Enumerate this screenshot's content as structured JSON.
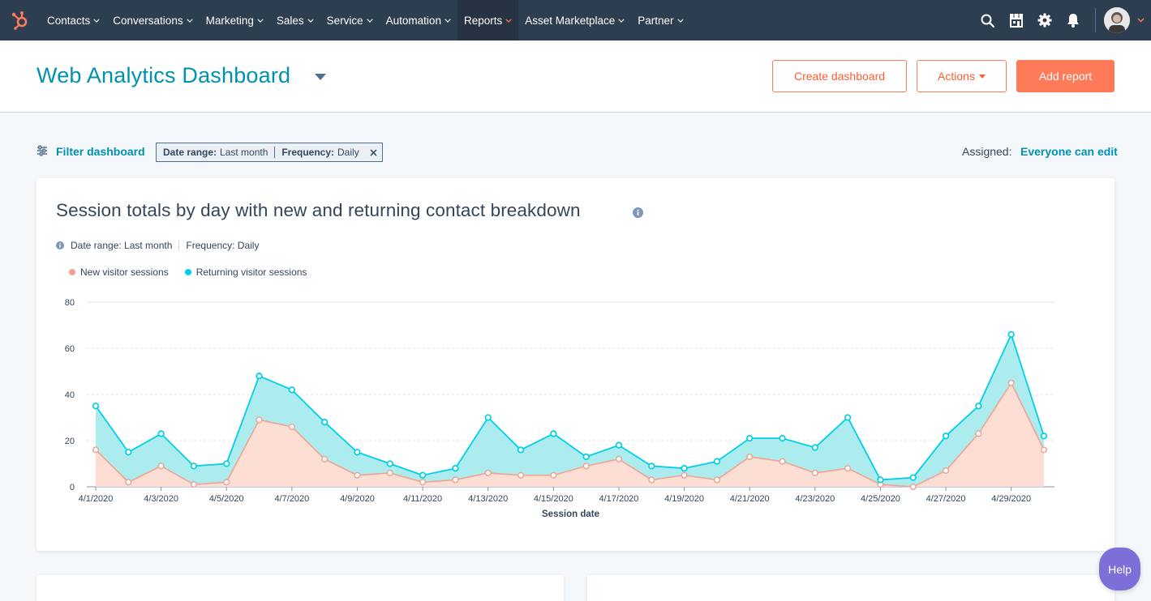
{
  "nav": {
    "items": [
      {
        "label": "Contacts",
        "name": "nav-contacts"
      },
      {
        "label": "Conversations",
        "name": "nav-conversations"
      },
      {
        "label": "Marketing",
        "name": "nav-marketing"
      },
      {
        "label": "Sales",
        "name": "nav-sales"
      },
      {
        "label": "Service",
        "name": "nav-service"
      },
      {
        "label": "Automation",
        "name": "nav-automation"
      },
      {
        "label": "Reports",
        "name": "nav-reports",
        "active": true
      },
      {
        "label": "Asset Marketplace",
        "name": "nav-asset-marketplace"
      },
      {
        "label": "Partner",
        "name": "nav-partner"
      }
    ],
    "icons": [
      "search-icon",
      "marketplace-icon",
      "gear-icon",
      "bell-icon"
    ],
    "colors": {
      "bg": "#2d3e50",
      "active_bg": "#253342",
      "logo": "#ff7a59",
      "reports_chevron": "#ff7a59"
    }
  },
  "header": {
    "title": "Web Analytics Dashboard",
    "create_label": "Create dashboard",
    "actions_label": "Actions",
    "add_label": "Add report"
  },
  "filter": {
    "link_label": "Filter dashboard",
    "date_key": "Date range:",
    "date_value": "Last month",
    "freq_key": "Frequency:",
    "freq_value": "Daily",
    "assigned_label": "Assigned:",
    "assigned_value": "Everyone can edit"
  },
  "report": {
    "title": "Session totals by day with new and returning contact breakdown",
    "meta_date": "Date range: Last month",
    "meta_freq": "Frequency: Daily"
  },
  "chart_data": {
    "type": "area",
    "xlabel": "Session date",
    "ylabel": "",
    "ylim": [
      0,
      80
    ],
    "yticks": [
      0,
      20,
      40,
      60,
      80
    ],
    "grid": true,
    "legend_placement": "top-left",
    "x": [
      "4/1/2020",
      "4/2/2020",
      "4/3/2020",
      "4/4/2020",
      "4/5/2020",
      "4/6/2020",
      "4/7/2020",
      "4/8/2020",
      "4/9/2020",
      "4/10/2020",
      "4/11/2020",
      "4/12/2020",
      "4/13/2020",
      "4/14/2020",
      "4/15/2020",
      "4/16/2020",
      "4/17/2020",
      "4/18/2020",
      "4/19/2020",
      "4/20/2020",
      "4/21/2020",
      "4/22/2020",
      "4/23/2020",
      "4/24/2020",
      "4/25/2020",
      "4/26/2020",
      "4/27/2020",
      "4/28/2020",
      "4/29/2020",
      "4/30/2020"
    ],
    "x_tick_labels": [
      "4/1/2020",
      "4/3/2020",
      "4/5/2020",
      "4/7/2020",
      "4/9/2020",
      "4/11/2020",
      "4/13/2020",
      "4/15/2020",
      "4/17/2020",
      "4/19/2020",
      "4/21/2020",
      "4/23/2020",
      "4/25/2020",
      "4/27/2020",
      "4/29/2020"
    ],
    "series": [
      {
        "name": "New visitor sessions",
        "color": "#f2a28f",
        "fill": "#fcdcd3",
        "values": [
          16,
          2,
          9,
          1,
          2,
          29,
          26,
          12,
          5,
          6,
          2,
          3,
          6,
          5,
          5,
          9,
          12,
          3,
          5,
          3,
          13,
          11,
          6,
          8,
          1,
          0,
          7,
          23,
          45,
          16
        ]
      },
      {
        "name": "Returning visitor sessions",
        "color": "#00d0e4",
        "fill": "#a8ebed",
        "values": [
          35,
          15,
          23,
          9,
          10,
          48,
          42,
          28,
          15,
          10,
          5,
          8,
          30,
          16,
          23,
          13,
          18,
          9,
          8,
          11,
          21,
          21,
          17,
          30,
          3,
          4,
          22,
          35,
          66,
          22
        ]
      }
    ]
  },
  "help_label": "Help"
}
